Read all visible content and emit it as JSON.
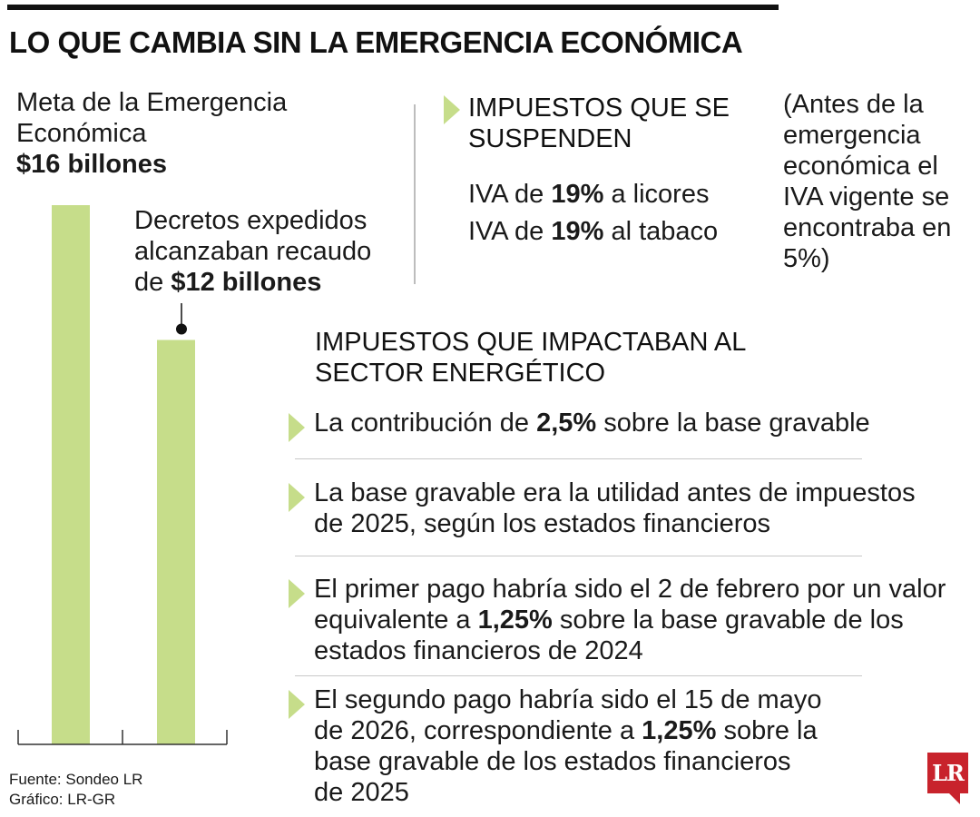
{
  "header": {
    "title": "LO QUE CAMBIA SIN LA EMERGENCIA ECONÓMICA"
  },
  "chart_data": {
    "type": "bar",
    "categories": [
      "Meta de la Emergencia Económica",
      "Decretos expedidos alcanzaban recaudo"
    ],
    "values": [
      16,
      12
    ],
    "unit": "billones",
    "ylim": [
      0,
      16
    ],
    "grid": false,
    "colors": {
      "bar": "#c6dd8a",
      "axis": "#333333",
      "marker": "#111111"
    },
    "labels": {
      "meta_text": "Meta de la Emergencia Económica",
      "meta_value": "$16 billones",
      "decretos_text": "Decretos expedidos alcanzaban recaudo de ",
      "decretos_value": "$12 billones"
    }
  },
  "suspended": {
    "title": "IMPUESTOS QUE SE SUSPENDEN",
    "items": [
      {
        "pre": "IVA de ",
        "bold": "19%",
        "post": " a licores"
      },
      {
        "pre": "IVA de ",
        "bold": "19%",
        "post": " al tabaco"
      }
    ],
    "note": "(Antes de la emergencia económica el IVA vigente se encontraba en 5%)"
  },
  "energy": {
    "title": "IMPUESTOS QUE IMPACTABAN AL SECTOR ENERGÉTICO",
    "items": [
      {
        "pre": "La contribución de ",
        "bold": "2,5%",
        "post": " sobre la base gravable"
      },
      {
        "pre": "La base gravable era la utilidad antes de impuestos de 2025, según los estados financieros",
        "bold": "",
        "post": ""
      },
      {
        "pre": "El primer pago habría sido el 2 de febrero por un valor equivalente a ",
        "bold": "1,25%",
        "post": " sobre la base gravable de los estados financieros de 2024"
      },
      {
        "pre": "El segundo pago habría sido el 15 de mayo de 2026, correspondiente a ",
        "bold": "1,25%",
        "post": " sobre la base gravable de los estados financieros de 2025"
      }
    ]
  },
  "footer": {
    "source": "Fuente: Sondeo LR",
    "credit": "Gráfico: LR-GR",
    "logo": "LR"
  },
  "accent_color": "#c6dd8a",
  "brand_color": "#c8232c"
}
